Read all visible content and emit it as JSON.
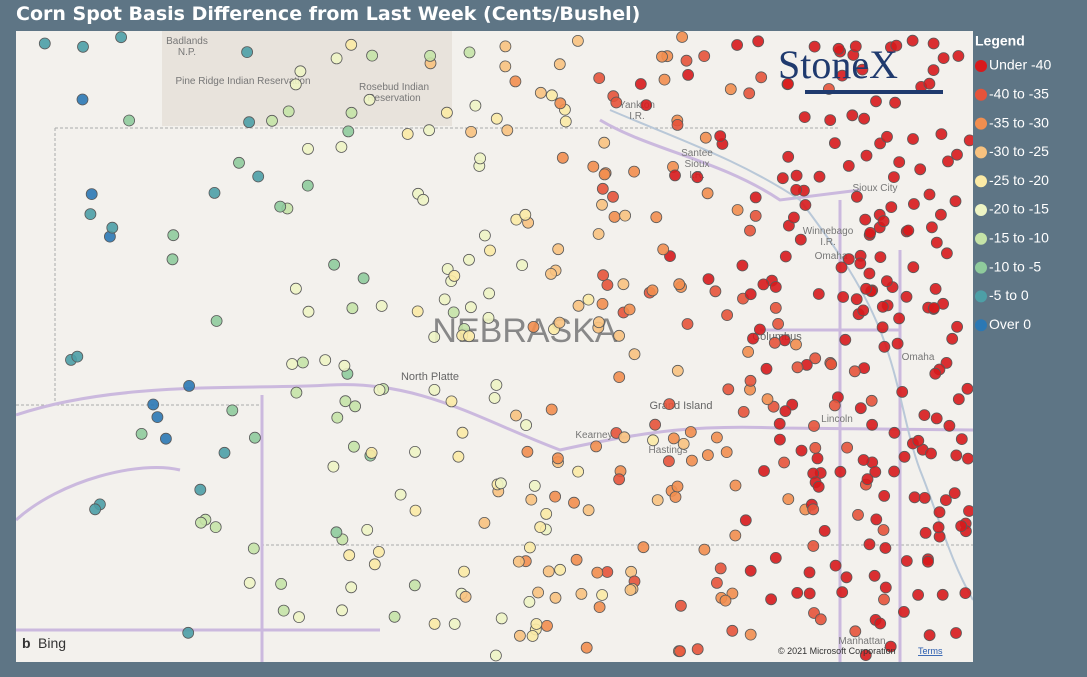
{
  "header": {
    "title": "Corn Spot Basis Difference from Last Week (Cents/Bushel)"
  },
  "legend": {
    "title": "Legend",
    "items": [
      {
        "label": "Under -40",
        "color": "#d7191c"
      },
      {
        "label": "-40 to -35",
        "color": "#e5533a"
      },
      {
        "label": "-35 to -30",
        "color": "#f28e4f"
      },
      {
        "label": "-30 to -25",
        "color": "#f8c27f"
      },
      {
        "label": "-25 to -20",
        "color": "#fbeaa5"
      },
      {
        "label": "-20 to -15",
        "color": "#eef4c4"
      },
      {
        "label": "-15 to -10",
        "color": "#c5e3a7"
      },
      {
        "label": "-10 to -5",
        "color": "#8fcb9c"
      },
      {
        "label": "-5 to 0",
        "color": "#4d9fa6"
      },
      {
        "label": "Over 0",
        "color": "#2b78b4"
      }
    ]
  },
  "logo": "StoneX",
  "map": {
    "labels": [
      {
        "lines": [
          "Badlands",
          "N.P."
        ]
      },
      {
        "lines": [
          "Pine Ridge Indian Reservation"
        ]
      },
      {
        "lines": [
          "Rosebud Indian",
          "Reservation"
        ]
      },
      {
        "lines": [
          "Yankton",
          "I.R."
        ]
      },
      {
        "lines": [
          "Santee",
          "Sioux",
          "I.R."
        ]
      },
      {
        "lines": [
          "Sioux City"
        ]
      },
      {
        "lines": [
          "Winnebago",
          "I.R."
        ]
      },
      {
        "lines": [
          "Omaha"
        ]
      },
      {
        "lines": [
          "Columbus"
        ]
      },
      {
        "lines": [
          "Omaha"
        ]
      },
      {
        "lines": [
          "North Platte"
        ]
      },
      {
        "lines": [
          "Grand Island"
        ]
      },
      {
        "lines": [
          "Kearney"
        ]
      },
      {
        "lines": [
          "Hastings"
        ]
      },
      {
        "lines": [
          "Lincoln"
        ]
      },
      {
        "lines": [
          "Manhattan"
        ]
      }
    ],
    "state": "NEBRASKA"
  },
  "attribution": {
    "provider": "Bing",
    "copyright": "© 2021 Microsoft Corporation",
    "terms": "Terms"
  }
}
